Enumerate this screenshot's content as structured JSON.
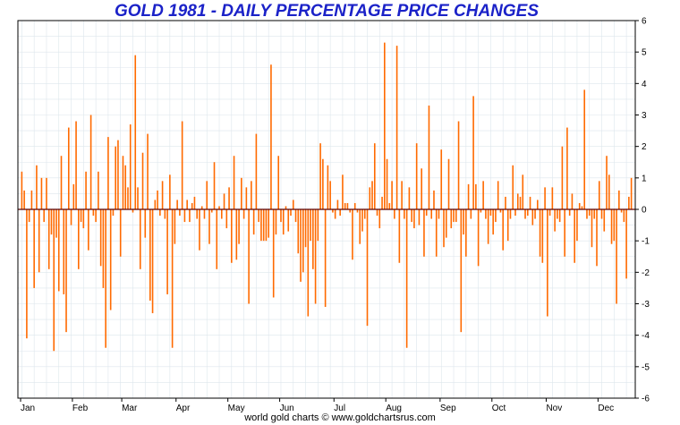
{
  "title": "GOLD 1981 - DAILY PERCENTAGE PRICE CHANGES",
  "footer": "world gold charts © www.goldchartsrus.com",
  "colors": {
    "bar": "#ff6a00",
    "title": "#1b22c8",
    "zero_line": "#5a0000",
    "grid": "#dde6ec"
  },
  "chart_data": {
    "type": "bar",
    "title": "GOLD 1981 - DAILY PERCENTAGE PRICE CHANGES",
    "xlabel": "",
    "ylabel": "",
    "ylim": [
      -6,
      6
    ],
    "yticks": [
      6,
      5,
      4,
      3,
      2,
      1,
      0,
      -1,
      -2,
      -3,
      -4,
      -5,
      -6
    ],
    "y_axis_side": "right",
    "grid": true,
    "months": [
      "Jan",
      "Feb",
      "Mar",
      "Apr",
      "May",
      "Jun",
      "Jul",
      "Aug",
      "Sep",
      "Oct",
      "Nov",
      "Dec"
    ],
    "month_start_index": [
      0,
      21,
      41,
      63,
      84,
      105,
      127,
      148,
      170,
      191,
      213,
      234
    ],
    "values": [
      1.2,
      0.6,
      -4.1,
      -0.4,
      0.6,
      -2.5,
      1.4,
      -2.0,
      1.0,
      -0.4,
      1.0,
      -1.9,
      -0.8,
      -4.5,
      -0.9,
      -2.6,
      1.7,
      -2.7,
      -3.9,
      2.6,
      -0.5,
      0.8,
      2.8,
      -1.9,
      -0.4,
      -0.6,
      1.2,
      -1.3,
      3.0,
      -0.2,
      -0.4,
      1.2,
      -1.8,
      -2.5,
      -4.4,
      2.3,
      -3.2,
      -0.2,
      2.0,
      2.2,
      -1.5,
      1.7,
      1.4,
      0.7,
      2.7,
      -0.1,
      4.9,
      0.7,
      -1.9,
      1.8,
      -0.9,
      2.4,
      -2.9,
      -3.3,
      0.3,
      0.6,
      -0.2,
      0.9,
      -0.3,
      -2.7,
      1.1,
      -4.4,
      -1.1,
      0.3,
      -0.2,
      2.8,
      -0.4,
      0.3,
      -0.4,
      0.2,
      0.4,
      -0.3,
      -1.3,
      0.1,
      -0.3,
      0.9,
      -1.1,
      -0.1,
      1.5,
      -1.9,
      0.1,
      -0.3,
      0.5,
      -0.6,
      0.7,
      -1.7,
      1.7,
      -1.6,
      -1.1,
      1.0,
      -0.3,
      0.7,
      -3.0,
      0.9,
      -0.8,
      2.4,
      -0.4,
      -1.0,
      -1.0,
      -1.0,
      -0.9,
      4.6,
      -2.8,
      -0.8,
      1.7,
      -0.4,
      -0.8,
      0.1,
      -0.7,
      -0.2,
      0.3,
      -0.4,
      -1.4,
      -2.3,
      -2.0,
      -1.2,
      -3.4,
      -1.0,
      -1.9,
      -3.0,
      -1.0,
      2.1,
      1.6,
      -3.1,
      1.4,
      0.9,
      -0.1,
      -0.3,
      0.3,
      -0.2,
      1.1,
      0.2,
      0.2,
      -0.1,
      -1.6,
      0.2,
      -0.1,
      -1.1,
      -0.7,
      -0.3,
      -3.7,
      0.7,
      0.9,
      2.1,
      -0.2,
      -0.6,
      0.4,
      5.3,
      1.6,
      0.2,
      0.9,
      -0.3,
      5.2,
      -1.7,
      0.9,
      -0.3,
      -4.4,
      0.7,
      -0.4,
      -0.6,
      2.1,
      -0.5,
      1.3,
      -1.5,
      -0.2,
      3.3,
      -0.3,
      0.6,
      -1.5,
      -0.3,
      1.9,
      -1.2,
      -0.9,
      1.6,
      -0.6,
      -0.4,
      -0.4,
      2.8,
      -3.9,
      -0.8,
      -1.5,
      0.8,
      -0.3,
      3.6,
      0.8,
      -1.8,
      -0.1,
      0.9,
      -0.3,
      -1.1,
      -0.2,
      -0.8,
      -0.4,
      0.9,
      -0.1,
      -1.3,
      0.4,
      -1.0,
      -0.3,
      1.4,
      -0.2,
      0.5,
      0.4,
      1.1,
      -0.3,
      -0.2,
      0.4,
      -0.5,
      -0.3,
      0.3,
      -1.5,
      -1.7,
      0.7,
      -3.4,
      -0.2,
      0.7,
      -0.7,
      -0.3,
      -0.4,
      2.0,
      -1.5,
      2.6,
      -0.2,
      0.5,
      -1.7,
      -1.0,
      0.2,
      0.1,
      3.8,
      -0.3,
      -0.2,
      -1.2,
      -0.3,
      -1.8,
      0.9,
      -0.3,
      -0.7,
      1.7,
      1.1,
      -1.1,
      -1.0,
      -3.0,
      0.6,
      -0.1,
      -0.4,
      -2.2,
      0.4,
      1.0
    ]
  }
}
